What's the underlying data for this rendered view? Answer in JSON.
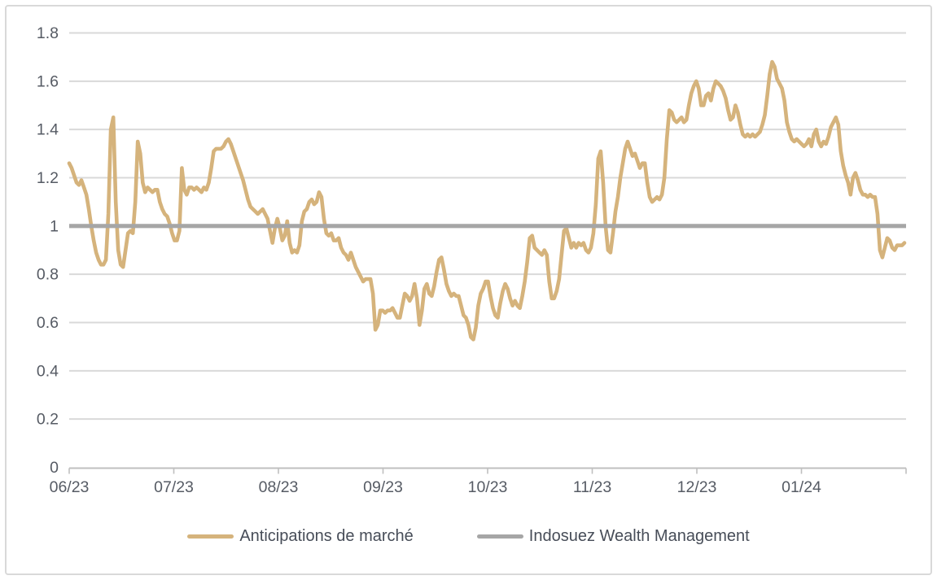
{
  "page": {
    "background_color": "#ffffff",
    "frame_border_color": "#d9d9d9",
    "gridline_color": "#d9d9d9",
    "axis_line_color": "#bfbfbf",
    "axis_label_color": "#565b64",
    "legend_text_color": "#474d58"
  },
  "chart_data": {
    "type": "line",
    "title": "",
    "xlabel": "",
    "ylabel": "",
    "ylim": [
      0,
      1.8
    ],
    "grid": true,
    "legend_position": "bottom",
    "y_tick_labels": [
      "0",
      "0.2",
      "0.4",
      "0.6",
      "0.8",
      "1",
      "1.2",
      "1.4",
      "1.6",
      "1.8"
    ],
    "y_tick_values": [
      0,
      0.2,
      0.4,
      0.6,
      0.8,
      1.0,
      1.2,
      1.4,
      1.6,
      1.8
    ],
    "x_tick_labels": [
      "06/23",
      "07/23",
      "08/23",
      "09/23",
      "10/23",
      "11/23",
      "12/23",
      "01/24"
    ],
    "series": [
      {
        "name": "Anticipations de marché",
        "color": "#d5b37c",
        "values": [
          1.26,
          1.24,
          1.21,
          1.18,
          1.17,
          1.19,
          1.16,
          1.13,
          1.07,
          1.0,
          0.94,
          0.89,
          0.86,
          0.84,
          0.84,
          0.86,
          1.05,
          1.4,
          1.45,
          1.1,
          0.9,
          0.84,
          0.83,
          0.9,
          0.97,
          0.98,
          0.97,
          1.1,
          1.35,
          1.3,
          1.18,
          1.14,
          1.16,
          1.15,
          1.14,
          1.15,
          1.15,
          1.1,
          1.07,
          1.05,
          1.04,
          1.01,
          0.97,
          0.94,
          0.94,
          0.98,
          1.24,
          1.15,
          1.13,
          1.16,
          1.16,
          1.15,
          1.16,
          1.15,
          1.14,
          1.16,
          1.15,
          1.18,
          1.24,
          1.31,
          1.32,
          1.32,
          1.32,
          1.33,
          1.35,
          1.36,
          1.34,
          1.31,
          1.28,
          1.25,
          1.22,
          1.19,
          1.15,
          1.11,
          1.08,
          1.07,
          1.06,
          1.05,
          1.06,
          1.07,
          1.05,
          1.03,
          0.98,
          0.93,
          0.99,
          1.03,
          0.99,
          0.94,
          0.96,
          1.02,
          0.93,
          0.89,
          0.9,
          0.89,
          0.92,
          1.02,
          1.06,
          1.07,
          1.1,
          1.11,
          1.09,
          1.1,
          1.14,
          1.12,
          1.03,
          0.97,
          0.96,
          0.97,
          0.94,
          0.94,
          0.95,
          0.91,
          0.89,
          0.88,
          0.86,
          0.89,
          0.86,
          0.83,
          0.81,
          0.79,
          0.77,
          0.78,
          0.78,
          0.78,
          0.72,
          0.57,
          0.59,
          0.65,
          0.65,
          0.64,
          0.65,
          0.65,
          0.66,
          0.64,
          0.62,
          0.62,
          0.67,
          0.72,
          0.71,
          0.69,
          0.71,
          0.76,
          0.7,
          0.59,
          0.65,
          0.74,
          0.76,
          0.72,
          0.71,
          0.75,
          0.81,
          0.86,
          0.87,
          0.82,
          0.76,
          0.73,
          0.71,
          0.72,
          0.71,
          0.71,
          0.67,
          0.63,
          0.62,
          0.59,
          0.54,
          0.53,
          0.58,
          0.67,
          0.72,
          0.74,
          0.77,
          0.77,
          0.71,
          0.66,
          0.63,
          0.62,
          0.68,
          0.73,
          0.76,
          0.74,
          0.7,
          0.67,
          0.69,
          0.67,
          0.66,
          0.71,
          0.77,
          0.85,
          0.95,
          0.96,
          0.91,
          0.9,
          0.89,
          0.88,
          0.9,
          0.88,
          0.77,
          0.7,
          0.7,
          0.73,
          0.78,
          0.88,
          0.98,
          0.99,
          0.95,
          0.91,
          0.93,
          0.91,
          0.93,
          0.92,
          0.93,
          0.9,
          0.89,
          0.91,
          0.97,
          1.09,
          1.28,
          1.31,
          1.18,
          1.0,
          0.9,
          0.89,
          0.97,
          1.06,
          1.12,
          1.2,
          1.26,
          1.32,
          1.35,
          1.32,
          1.29,
          1.3,
          1.27,
          1.24,
          1.26,
          1.26,
          1.18,
          1.12,
          1.1,
          1.11,
          1.12,
          1.11,
          1.13,
          1.2,
          1.36,
          1.48,
          1.47,
          1.44,
          1.43,
          1.44,
          1.45,
          1.43,
          1.44,
          1.5,
          1.55,
          1.58,
          1.6,
          1.57,
          1.5,
          1.5,
          1.54,
          1.55,
          1.52,
          1.57,
          1.6,
          1.59,
          1.58,
          1.56,
          1.53,
          1.48,
          1.44,
          1.45,
          1.5,
          1.47,
          1.42,
          1.38,
          1.37,
          1.38,
          1.37,
          1.38,
          1.37,
          1.38,
          1.39,
          1.42,
          1.46,
          1.54,
          1.63,
          1.68,
          1.66,
          1.61,
          1.59,
          1.57,
          1.52,
          1.43,
          1.39,
          1.36,
          1.35,
          1.36,
          1.35,
          1.34,
          1.33,
          1.34,
          1.36,
          1.33,
          1.38,
          1.4,
          1.35,
          1.33,
          1.35,
          1.34,
          1.37,
          1.41,
          1.43,
          1.45,
          1.42,
          1.31,
          1.25,
          1.21,
          1.18,
          1.13,
          1.2,
          1.22,
          1.19,
          1.15,
          1.13,
          1.13,
          1.12,
          1.13,
          1.12,
          1.12,
          1.05,
          0.9,
          0.87,
          0.91,
          0.95,
          0.94,
          0.91,
          0.9,
          0.92,
          0.92,
          0.92,
          0.93
        ]
      },
      {
        "name": "Indosuez Wealth Management",
        "color": "#a6a6a6",
        "constant_value": 1.0
      }
    ]
  }
}
